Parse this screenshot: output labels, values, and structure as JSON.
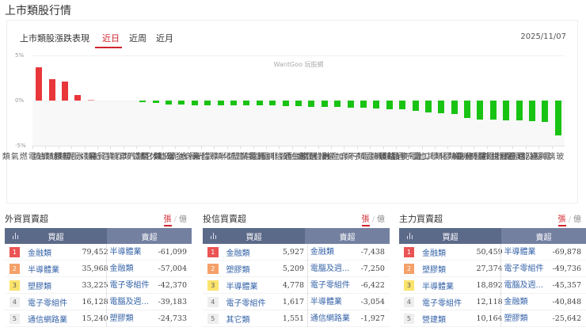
{
  "page": {
    "title": "上市類股行情"
  },
  "chart_header": {
    "title": "上市類股漲跌表現",
    "tabs": [
      {
        "label": "近日",
        "active": true
      },
      {
        "label": "近周",
        "active": false
      },
      {
        "label": "近月",
        "active": false
      }
    ],
    "date": "2025/11/07",
    "watermark": "WantGoo 玩股網"
  },
  "colors": {
    "up": "#e8363a",
    "down": "#19c313",
    "accent": "#d0242c",
    "table_header": "#5c6a89"
  },
  "chart_data": {
    "type": "bar",
    "title": "上市類股漲跌表現",
    "ylabel": "",
    "xlabel": "",
    "ylim": [
      -5,
      5
    ],
    "yticks": [
      "5%",
      "0%",
      "-5%"
    ],
    "grid": true,
    "categories": [
      "油電燃氣類",
      "紡織類",
      "塑膠類",
      "水泥類",
      "資訊服務類",
      "造紙類",
      "百貨貿易",
      "汽車類",
      "鋼鐵類",
      "其它類",
      "運動休閒",
      "水泥窯類",
      "未含金電",
      "觀光餐旅",
      "半導體業",
      "塑化類",
      "營建類",
      "光電業",
      "非電指",
      "通信網路業",
      "金融類",
      "居家生活",
      "數位雲端",
      "加權報酬指",
      "不含金融",
      "電子類",
      "機電類",
      "航運類",
      "食品類",
      "電子通路類",
      "其他電子類",
      "化學工業",
      "橡膠類",
      "化生類",
      "電機機械",
      "生技醫療業",
      "電器電纜",
      "電子零組件",
      "綠能環保",
      "電腦及週邊設",
      "玻璃陶瓷"
    ],
    "values": [
      3.7,
      2.4,
      2.1,
      0.6,
      0.1,
      0.0,
      0.0,
      0.0,
      -0.1,
      -0.3,
      -0.4,
      -0.4,
      -0.5,
      -0.5,
      -0.5,
      -0.5,
      -0.5,
      -0.5,
      -0.5,
      -0.6,
      -0.6,
      -0.7,
      -0.7,
      -0.7,
      -0.8,
      -0.8,
      -0.9,
      -1.0,
      -1.0,
      -1.1,
      -1.3,
      -1.4,
      -1.5,
      -1.9,
      -2.1,
      -2.1,
      -2.2,
      -2.2,
      -2.3,
      -2.4,
      -3.9
    ]
  },
  "panels": [
    {
      "title": "外資買賣超",
      "units": [
        "張",
        "億"
      ],
      "header": {
        "buy": "買超",
        "sell": "賣超"
      },
      "rows": [
        {
          "rank": "1",
          "buy_name": "金融類",
          "buy_value": "79,452",
          "sell_name": "半導體業",
          "sell_value": "-61,099"
        },
        {
          "rank": "2",
          "buy_name": "半導體業",
          "buy_value": "35,968",
          "sell_name": "金融類",
          "sell_value": "-57,004"
        },
        {
          "rank": "3",
          "buy_name": "塑膠類",
          "buy_value": "33,225",
          "sell_name": "電子零組件",
          "sell_value": "-42,370"
        },
        {
          "rank": "4",
          "buy_name": "電子零組件",
          "buy_value": "16,128",
          "sell_name": "電腦及週...",
          "sell_value": "-39,183"
        },
        {
          "rank": "5",
          "buy_name": "通信網路業",
          "buy_value": "15,240",
          "sell_name": "塑膠類",
          "sell_value": "-24,733"
        }
      ]
    },
    {
      "title": "投信買賣超",
      "units": [
        "張",
        "億"
      ],
      "header": {
        "buy": "買超",
        "sell": "賣超"
      },
      "rows": [
        {
          "rank": "1",
          "buy_name": "金融類",
          "buy_value": "5,927",
          "sell_name": "金融類",
          "sell_value": "-7,438"
        },
        {
          "rank": "2",
          "buy_name": "塑膠類",
          "buy_value": "5,209",
          "sell_name": "電腦及週...",
          "sell_value": "-7,250"
        },
        {
          "rank": "3",
          "buy_name": "半導體業",
          "buy_value": "4,778",
          "sell_name": "電子零組件",
          "sell_value": "-6,422"
        },
        {
          "rank": "4",
          "buy_name": "電子零組件",
          "buy_value": "1,617",
          "sell_name": "半導體業",
          "sell_value": "-3,054"
        },
        {
          "rank": "5",
          "buy_name": "其它類",
          "buy_value": "1,551",
          "sell_name": "通信網路業",
          "sell_value": "-1,927"
        }
      ]
    },
    {
      "title": "主力買賣超",
      "units": [
        "張",
        "億"
      ],
      "header": {
        "buy": "買超",
        "sell": "賣超"
      },
      "rows": [
        {
          "rank": "1",
          "buy_name": "金融類",
          "buy_value": "50,459",
          "sell_name": "半導體業",
          "sell_value": "-69,878"
        },
        {
          "rank": "2",
          "buy_name": "塑膠類",
          "buy_value": "27,374",
          "sell_name": "電子零組件",
          "sell_value": "-49,736"
        },
        {
          "rank": "3",
          "buy_name": "半導體業",
          "buy_value": "18,892",
          "sell_name": "電腦及週...",
          "sell_value": "-45,357"
        },
        {
          "rank": "4",
          "buy_name": "電子零組件",
          "buy_value": "12,118",
          "sell_name": "金融類",
          "sell_value": "-40,848"
        },
        {
          "rank": "5",
          "buy_name": "營建類",
          "buy_value": "10,164",
          "sell_name": "塑膠類",
          "sell_value": "-25,642"
        }
      ]
    }
  ]
}
